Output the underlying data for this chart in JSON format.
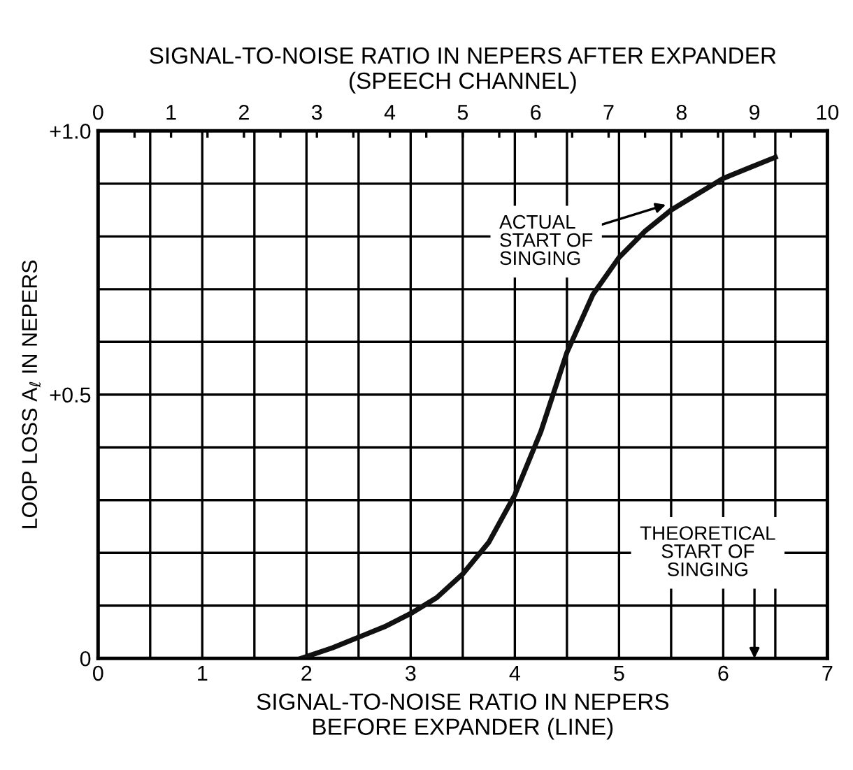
{
  "chart_data": {
    "type": "line",
    "xlabel": "SIGNAL-TO-NOISE RATIO IN NEPERS\nBEFORE EXPANDER (LINE)",
    "x2label": "SIGNAL-TO-NOISE RATIO IN NEPERS AFTER EXPANDER\n(SPEECH CHANNEL)",
    "ylabel": "LOOP LOSS A$_{ℓ}$ IN NEPERS",
    "x": [
      1.95,
      2.25,
      2.5,
      2.75,
      3,
      3.25,
      3.5,
      3.75,
      4,
      4.25,
      4.5,
      4.75,
      5,
      5.25,
      5.5,
      5.75,
      6,
      6.25,
      6.5
    ],
    "series": [
      {
        "color": "#111111",
        "values": [
          0,
          0.02,
          0.04,
          0.06,
          0.085,
          0.115,
          0.16,
          0.22,
          0.31,
          0.43,
          0.58,
          0.69,
          0.76,
          0.81,
          0.85,
          0.88,
          0.91,
          0.93,
          0.95
        ]
      }
    ],
    "xlim": [
      0,
      7
    ],
    "xticks": [
      0,
      {
        "value": 0.5,
        "label": null
      },
      1,
      {
        "value": 1.5,
        "label": null
      },
      2,
      {
        "value": 2.5,
        "label": null
      },
      3,
      {
        "value": 3.5,
        "label": null
      },
      4,
      {
        "value": 4.5,
        "label": null
      },
      5,
      {
        "value": 5.5,
        "label": null
      },
      6,
      {
        "value": 6.5,
        "label": null
      },
      7
    ],
    "ylim": [
      0,
      1
    ],
    "yticks": [
      {
        "value": 0,
        "label": "0"
      },
      {
        "value": 0.1,
        "label": null
      },
      {
        "value": 0.2,
        "label": null
      },
      {
        "value": 0.3,
        "label": null
      },
      {
        "value": 0.4,
        "label": null
      },
      {
        "value": 0.5,
        "label": "+0.5"
      },
      {
        "value": 0.6,
        "label": null
      },
      {
        "value": 0.7,
        "label": null
      },
      {
        "value": 0.8,
        "label": null
      },
      {
        "value": 0.9,
        "label": null
      },
      {
        "value": 1.0,
        "label": "+1.0"
      }
    ],
    "x2lim": [
      0,
      10
    ],
    "x2ticks": [
      0,
      {
        "value": 0.5,
        "label": null
      },
      1,
      {
        "value": 1.5,
        "label": null
      },
      2,
      {
        "value": 2.5,
        "label": null
      },
      3,
      {
        "value": 3.5,
        "label": null
      },
      4,
      {
        "value": 4.5,
        "label": null
      },
      5,
      {
        "value": 5.5,
        "label": null
      },
      6,
      {
        "value": 6.5,
        "label": null
      },
      7,
      {
        "value": 7.5,
        "label": null
      },
      8,
      {
        "value": 8.5,
        "label": null
      },
      9,
      {
        "value": 9.5,
        "label": null
      },
      10
    ],
    "grid": true,
    "line_style": "solid",
    "marker": "none",
    "annotations": [
      {
        "text": "ACTUAL\nSTART OF\nSINGING",
        "x": 5.45,
        "y": 0.86
      },
      "THEORETICAL\nSTART OF\nSINGING"
    ]
  }
}
